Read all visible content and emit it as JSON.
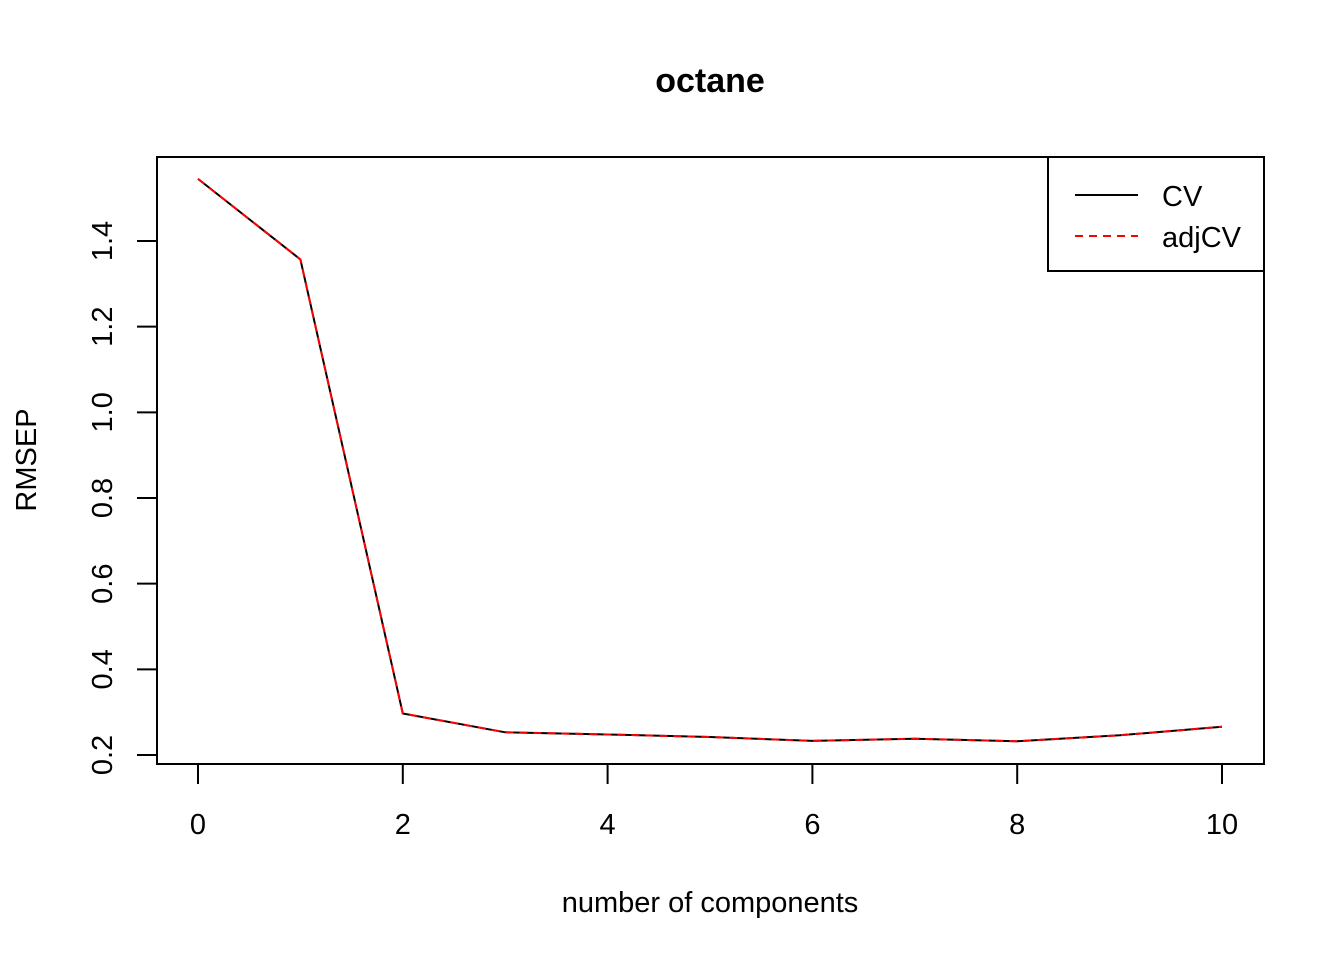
{
  "chart_data": {
    "type": "line",
    "title": "octane",
    "xlabel": "number of components",
    "ylabel": "RMSEP",
    "xlim": [
      0,
      10
    ],
    "ylim": [
      0.2,
      1.55
    ],
    "x_ticks": [
      0,
      2,
      4,
      6,
      8,
      10
    ],
    "y_ticks": [
      0.2,
      0.4,
      0.6,
      0.8,
      1.0,
      1.2,
      1.4
    ],
    "y_tick_labels": [
      "0.2",
      "0.4",
      "0.6",
      "0.8",
      "1.0",
      "1.2",
      "1.4"
    ],
    "x": [
      0,
      1,
      2,
      3,
      4,
      5,
      6,
      7,
      8,
      9,
      10
    ],
    "series": [
      {
        "name": "CV",
        "color": "#000000",
        "dash": "solid",
        "values": [
          1.545,
          1.357,
          0.297,
          0.253,
          0.248,
          0.242,
          0.233,
          0.238,
          0.232,
          0.246,
          0.266
        ]
      },
      {
        "name": "adjCV",
        "color": "#ff0000",
        "dash": "dashed",
        "values": [
          1.545,
          1.357,
          0.297,
          0.253,
          0.248,
          0.242,
          0.233,
          0.238,
          0.232,
          0.246,
          0.266
        ]
      }
    ],
    "legend_position": "top-right",
    "grid": false
  }
}
